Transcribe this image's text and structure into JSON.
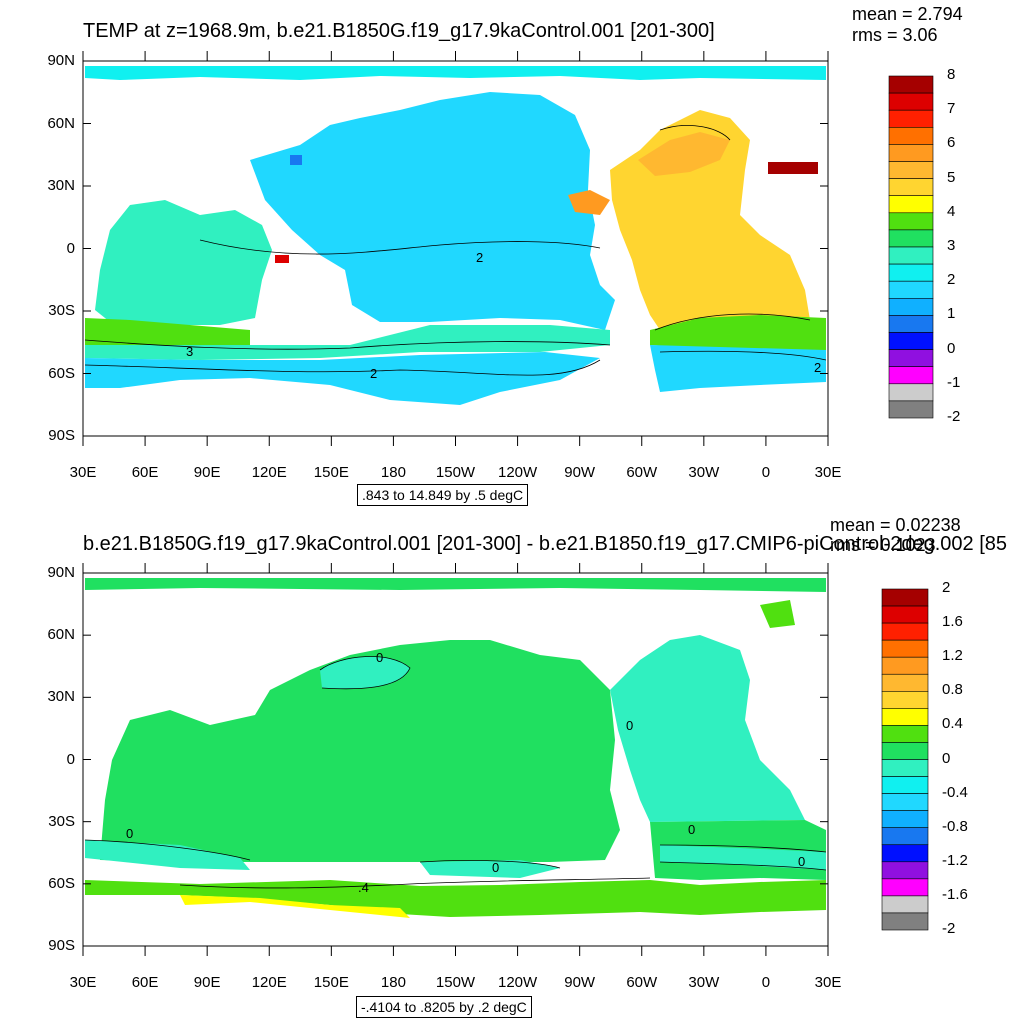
{
  "panels": [
    {
      "title": "TEMP at z=1968.9m, b.e21.B1850G.f19_g17.9kaControl.001 [201-300]",
      "mean_label": "mean = 2.794",
      "rms_label": "rms = 3.06",
      "range_label": ".843 to 14.849 by .5 degC",
      "lat_labels": [
        "90N",
        "60N",
        "30N",
        "0",
        "30S",
        "60S",
        "90S"
      ],
      "lon_labels": [
        "30E",
        "60E",
        "90E",
        "120E",
        "150E",
        "180",
        "150W",
        "120W",
        "90W",
        "60W",
        "30W",
        "0",
        "30E"
      ],
      "colorbar_labels": [
        "8",
        "7",
        "6",
        "5",
        "4",
        "3",
        "2",
        "1",
        "0",
        "-1",
        "-2"
      ],
      "colorbar_colors": [
        "#a50000",
        "#dd0000",
        "#ff2000",
        "#ff7000",
        "#ff9a20",
        "#ffb830",
        "#ffd530",
        "#ffff00",
        "#50e010",
        "#20e060",
        "#30f0c0",
        "#10f0f0",
        "#20d8ff",
        "#10b0ff",
        "#1878f0",
        "#0010ff",
        "#9010e0",
        "#ff00ff",
        "#cccccc",
        "#808080"
      ],
      "contour_labels": [
        "2",
        "3",
        "2",
        "2"
      ]
    },
    {
      "title": "b.e21.B1850G.f19_g17.9kaControl.001 [201-300] - b.e21.B1850.f19_g17.CMIP6-piControl-2deg.002 [85",
      "mean_label": "mean = 0.02238",
      "rms_label": "rms = 0.1023",
      "range_label": "-.4104 to .8205 by .2 degC",
      "lat_labels": [
        "90N",
        "60N",
        "30N",
        "0",
        "30S",
        "60S",
        "90S"
      ],
      "lon_labels": [
        "30E",
        "60E",
        "90E",
        "120E",
        "150E",
        "180",
        "150W",
        "120W",
        "90W",
        "60W",
        "30W",
        "0",
        "30E"
      ],
      "colorbar_labels": [
        "2",
        "1.6",
        "1.2",
        "0.8",
        "0.4",
        "0",
        "-0.4",
        "-0.8",
        "-1.2",
        "-1.6",
        "-2"
      ],
      "colorbar_colors": [
        "#a50000",
        "#dd0000",
        "#ff2000",
        "#ff7000",
        "#ff9a20",
        "#ffb830",
        "#ffd530",
        "#ffff00",
        "#50e010",
        "#20e060",
        "#30f0c0",
        "#10f0f0",
        "#20d8ff",
        "#10b0ff",
        "#1878f0",
        "#0010ff",
        "#9010e0",
        "#ff00ff",
        "#cccccc",
        "#808080"
      ],
      "contour_labels": [
        "0",
        "0",
        "0",
        "0",
        "0",
        ".4",
        "0"
      ]
    }
  ]
}
